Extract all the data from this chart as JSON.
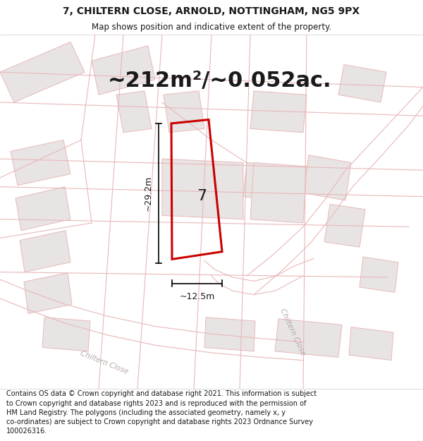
{
  "title_line1": "7, CHILTERN CLOSE, ARNOLD, NOTTINGHAM, NG5 9PX",
  "title_line2": "Map shows position and indicative extent of the property.",
  "area_text": "~212m²/~0.052ac.",
  "label_height": "~29.2m",
  "label_width": "~12.5m",
  "plot_number": "7",
  "road_label_bl": "Chiltern Close",
  "road_label_br": "Chiltern Close",
  "footer_text": "Contains OS data © Crown copyright and database right 2021. This information is subject to Crown copyright and database rights 2023 and is reproduced with the permission of HM Land Registry. The polygons (including the associated geometry, namely x, y co-ordinates) are subject to Crown copyright and database rights 2023 Ordnance Survey 100026316.",
  "map_bg": "#ffffff",
  "plot_fill": "#ffffff",
  "plot_edge": "#cc0000",
  "building_fill": "#e8e4e4",
  "road_line_color": "#e8b8b8",
  "dim_line_color": "#000000",
  "text_color": "#1a1a1a",
  "road_text_color": "#b8a8a8",
  "title_font_size": 10,
  "subtitle_font_size": 8.5,
  "area_font_size": 22,
  "dim_font_size": 9,
  "plot_label_font_size": 16,
  "footer_font_size": 7.0,
  "road_lw": 0.8,
  "bld_lw": 0.7
}
